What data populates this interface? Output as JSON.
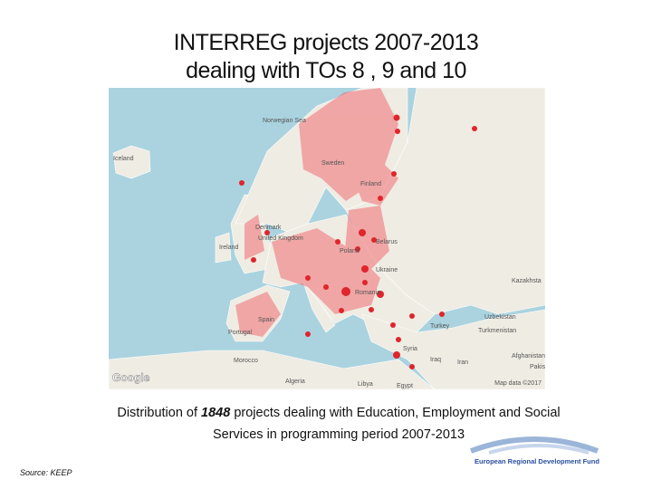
{
  "title": {
    "line1": "INTERREG projects 2007-2013",
    "line2": "dealing with TOs 8 , 9 and 10"
  },
  "map": {
    "labels": [
      "Norwegian Sea",
      "Iceland",
      "Sweden",
      "Finland",
      "United Kingdom",
      "Ireland",
      "Denmark",
      "Belarus",
      "Poland",
      "Ukraine",
      "Kazakhsta",
      "Romania",
      "Spain",
      "Portugal",
      "Turkey",
      "Uzbekistan",
      "Turkmenistan",
      "Syria",
      "Iraq",
      "Iran",
      "Afghanistan",
      "Pakist",
      "Morocco",
      "Algeria",
      "Libya",
      "Egypt"
    ],
    "attribution": "Map data ©2017",
    "provider": "Google"
  },
  "caption": {
    "before": "Distribution of ",
    "count": "1848",
    "after": " projects dealing with Education, Employment and Social",
    "line2": "Services in programming period 2007-2013"
  },
  "source": "Source: KEEP",
  "logo": "European Regional Development Fund"
}
